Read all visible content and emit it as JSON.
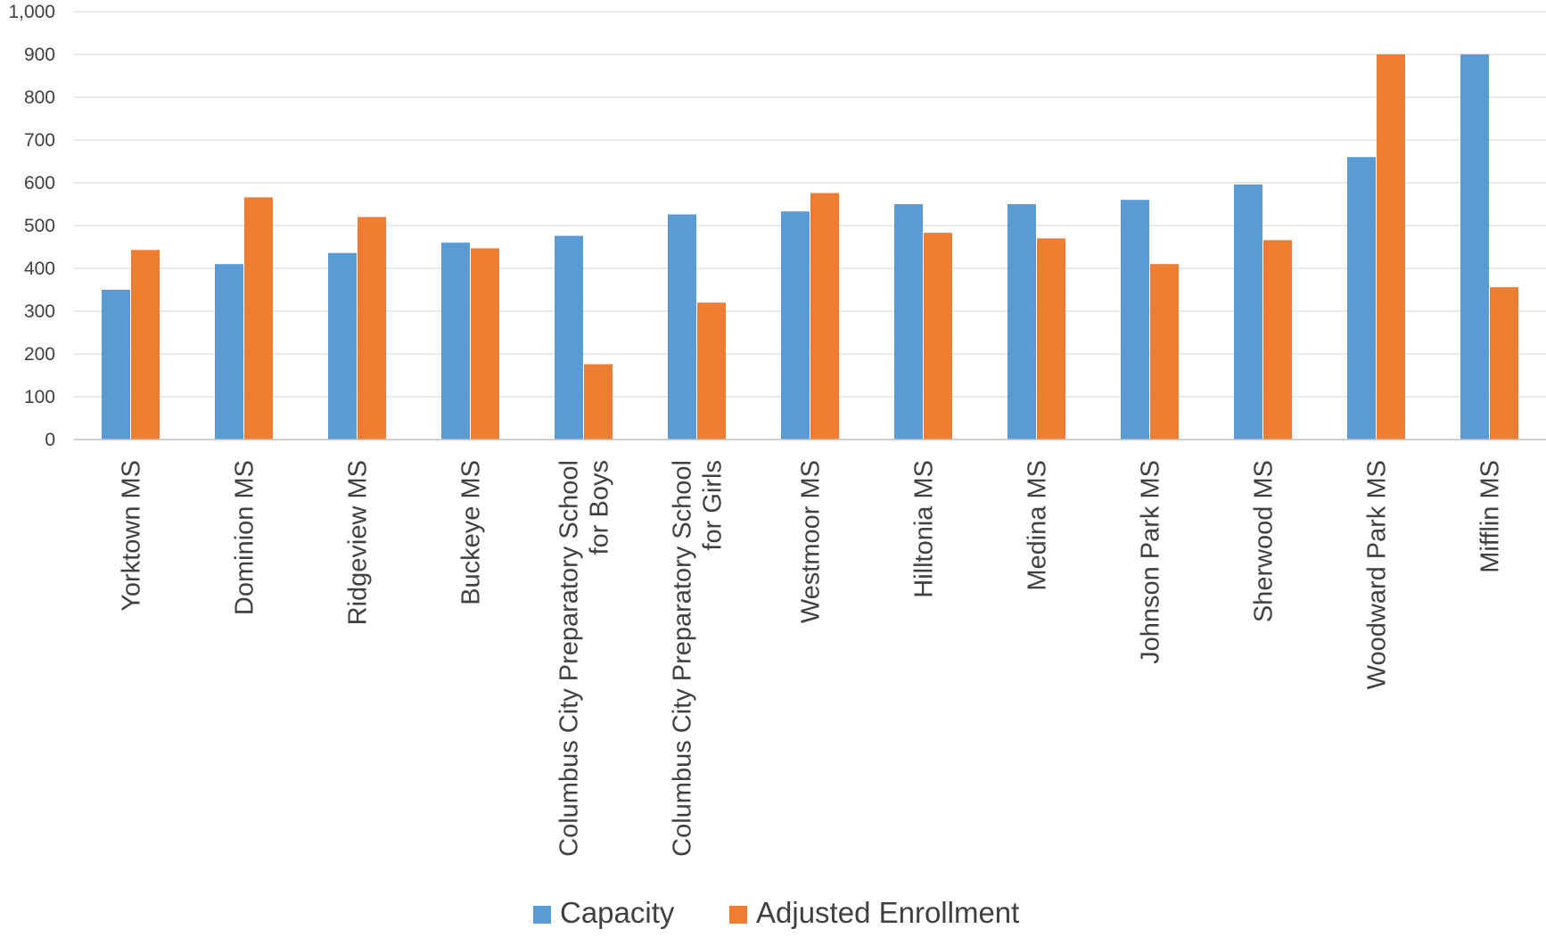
{
  "chart_data": {
    "type": "bar",
    "categories": [
      [
        "Yorktown MS"
      ],
      [
        "Dominion MS"
      ],
      [
        "Ridgeview MS"
      ],
      [
        "Buckeye MS"
      ],
      [
        "Columbus City Preparatory School",
        "for Boys"
      ],
      [
        "Columbus City Preparatory School",
        "for Girls"
      ],
      [
        "Westmoor MS"
      ],
      [
        "Hilltonia MS"
      ],
      [
        "Medina MS"
      ],
      [
        "Johnson Park MS"
      ],
      [
        "Sherwood MS"
      ],
      [
        "Woodward Park MS"
      ],
      [
        "Mifflin MS"
      ]
    ],
    "series": [
      {
        "name": "Capacity",
        "color": "#5B9BD5",
        "values": [
          350,
          410,
          436,
          460,
          476,
          526,
          533,
          550,
          550,
          560,
          596,
          660,
          900
        ]
      },
      {
        "name": "Adjusted Enrollment",
        "color": "#ED7D31",
        "values": [
          443,
          566,
          520,
          447,
          176,
          320,
          576,
          483,
          470,
          410,
          466,
          900,
          356
        ]
      }
    ],
    "yticks": [
      "0",
      "100",
      "200",
      "300",
      "400",
      "500",
      "600",
      "700",
      "800",
      "900",
      "1,000"
    ],
    "ylim": [
      0,
      1000
    ],
    "grid": true,
    "legend_position": "bottom-center"
  }
}
